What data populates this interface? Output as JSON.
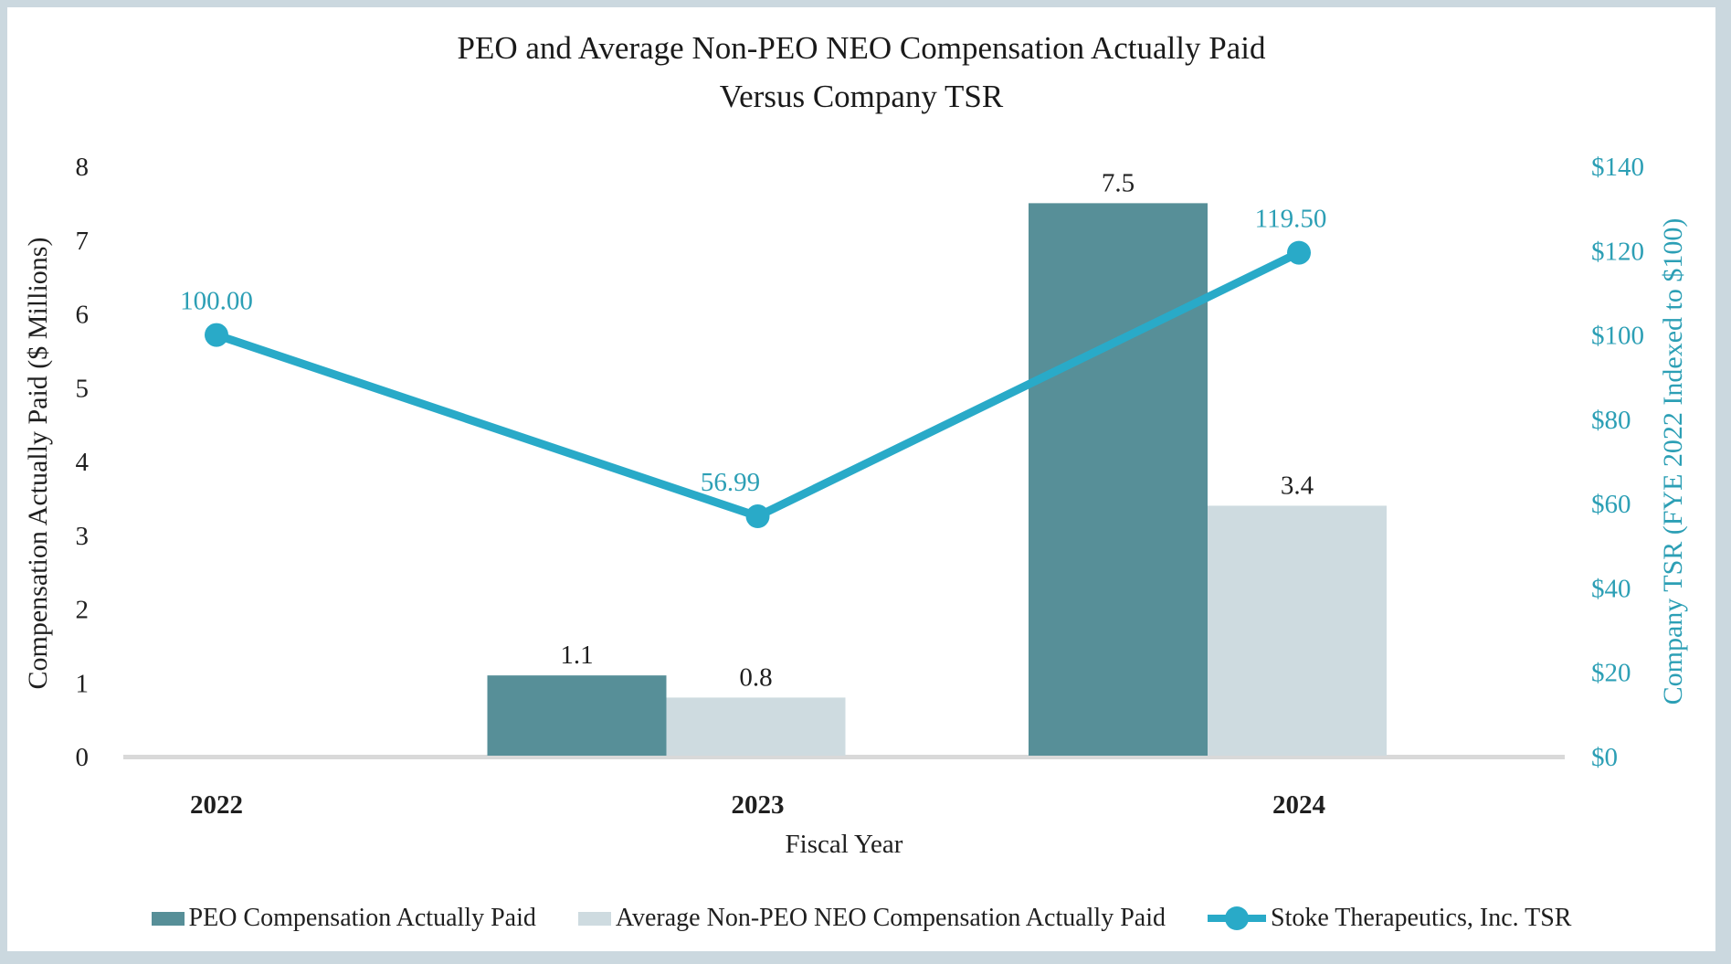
{
  "title": {
    "line1": "PEO and Average Non-PEO NEO Compensation Actually Paid",
    "line2": "Versus Company TSR"
  },
  "colors": {
    "frame_border": "#CBD8DF",
    "background": "#FFFFFF",
    "axis_baseline": "#D9D9D9",
    "black_text": "#1F1F1F",
    "teal_text": "#2C9FB5"
  },
  "chart_data": {
    "type": "combo-bar-line",
    "categories": [
      "2022",
      "2023",
      "2024"
    ],
    "series": [
      {
        "name": "PEO Compensation Actually Paid",
        "type": "bar",
        "axis": "left",
        "color": "#578F98",
        "values": [
          null,
          1.1,
          7.5
        ],
        "labels": [
          "",
          "1.1",
          "7.5"
        ]
      },
      {
        "name": "Average Non-PEO NEO Compensation Actually Paid",
        "type": "bar",
        "axis": "left",
        "color": "#CEDBE0",
        "values": [
          null,
          0.8,
          3.4
        ],
        "labels": [
          "",
          "0.8",
          "3.4"
        ]
      },
      {
        "name": "Stoke Therapeutics, Inc. TSR",
        "type": "line",
        "axis": "right",
        "color": "#29AAC8",
        "values": [
          100.0,
          56.99,
          119.5
        ],
        "labels": [
          "100.00",
          "56.99",
          "119.50"
        ]
      }
    ],
    "left_axis": {
      "title": "Compensation Actually Paid ($ Millions)",
      "min": 0,
      "max": 8,
      "step": 1,
      "tick_labels": [
        "0",
        "1",
        "2",
        "3",
        "4",
        "5",
        "6",
        "7",
        "8"
      ]
    },
    "right_axis": {
      "title": "Company TSR (FYE 2022 Indexed to $100)",
      "min": 0,
      "max": 140,
      "step": 20,
      "tick_labels": [
        "$0",
        "$20",
        "$40",
        "$60",
        "$80",
        "$100",
        "$120",
        "$140"
      ]
    },
    "x_axis": {
      "title": "Fiscal Year"
    },
    "grid": "off",
    "legend_position": "bottom"
  }
}
